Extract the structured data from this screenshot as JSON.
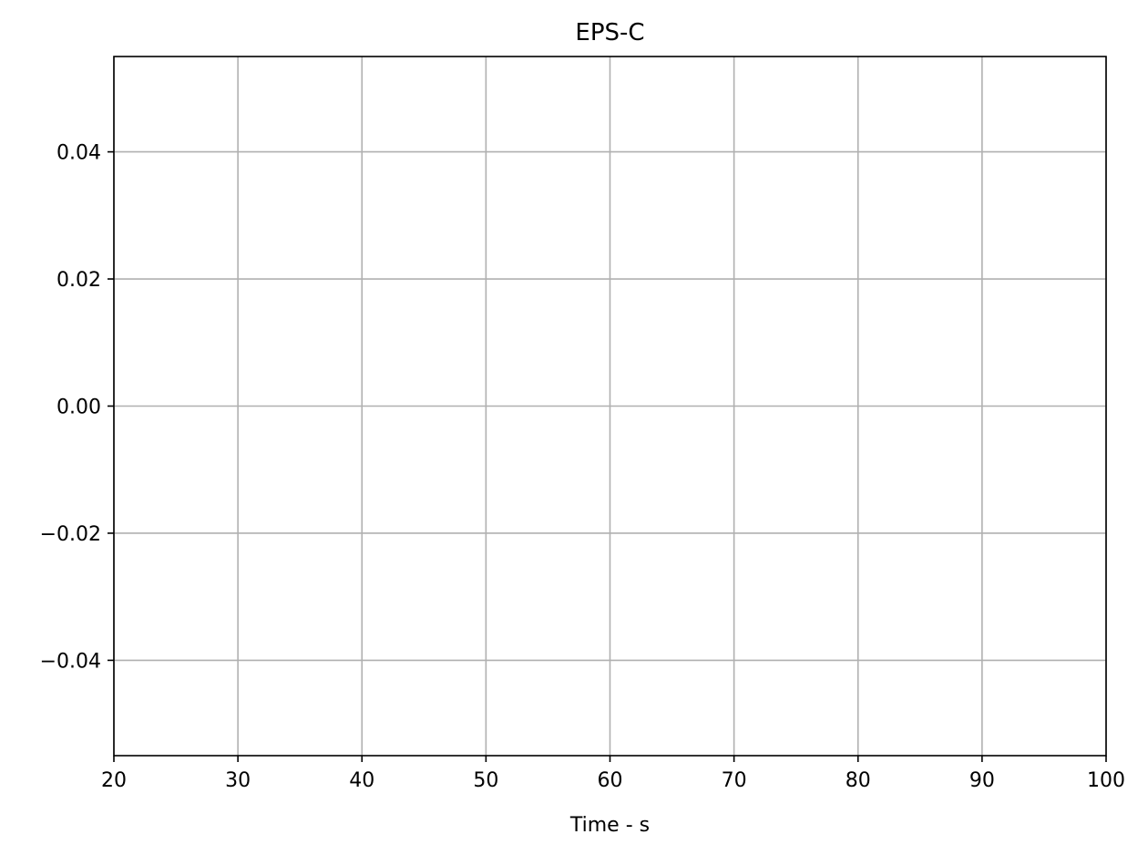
{
  "chart_data": {
    "type": "line",
    "title": "EPS-C",
    "xlabel": "Time - s",
    "ylabel": "",
    "xlim": [
      20,
      100
    ],
    "ylim": [
      -0.055,
      0.055
    ],
    "xticks": [
      20,
      30,
      40,
      50,
      60,
      70,
      80,
      90,
      100
    ],
    "xtick_labels": [
      "20",
      "30",
      "40",
      "50",
      "60",
      "70",
      "80",
      "90",
      "100"
    ],
    "yticks": [
      -0.04,
      -0.02,
      0.0,
      0.02,
      0.04
    ],
    "ytick_labels": [
      "−0.04",
      "−0.02",
      "0.00",
      "0.02",
      "0.04"
    ],
    "grid": true,
    "series": [],
    "colors": {
      "grid": "#b0b0b0",
      "axes": "#000000",
      "background": "#ffffff"
    }
  }
}
